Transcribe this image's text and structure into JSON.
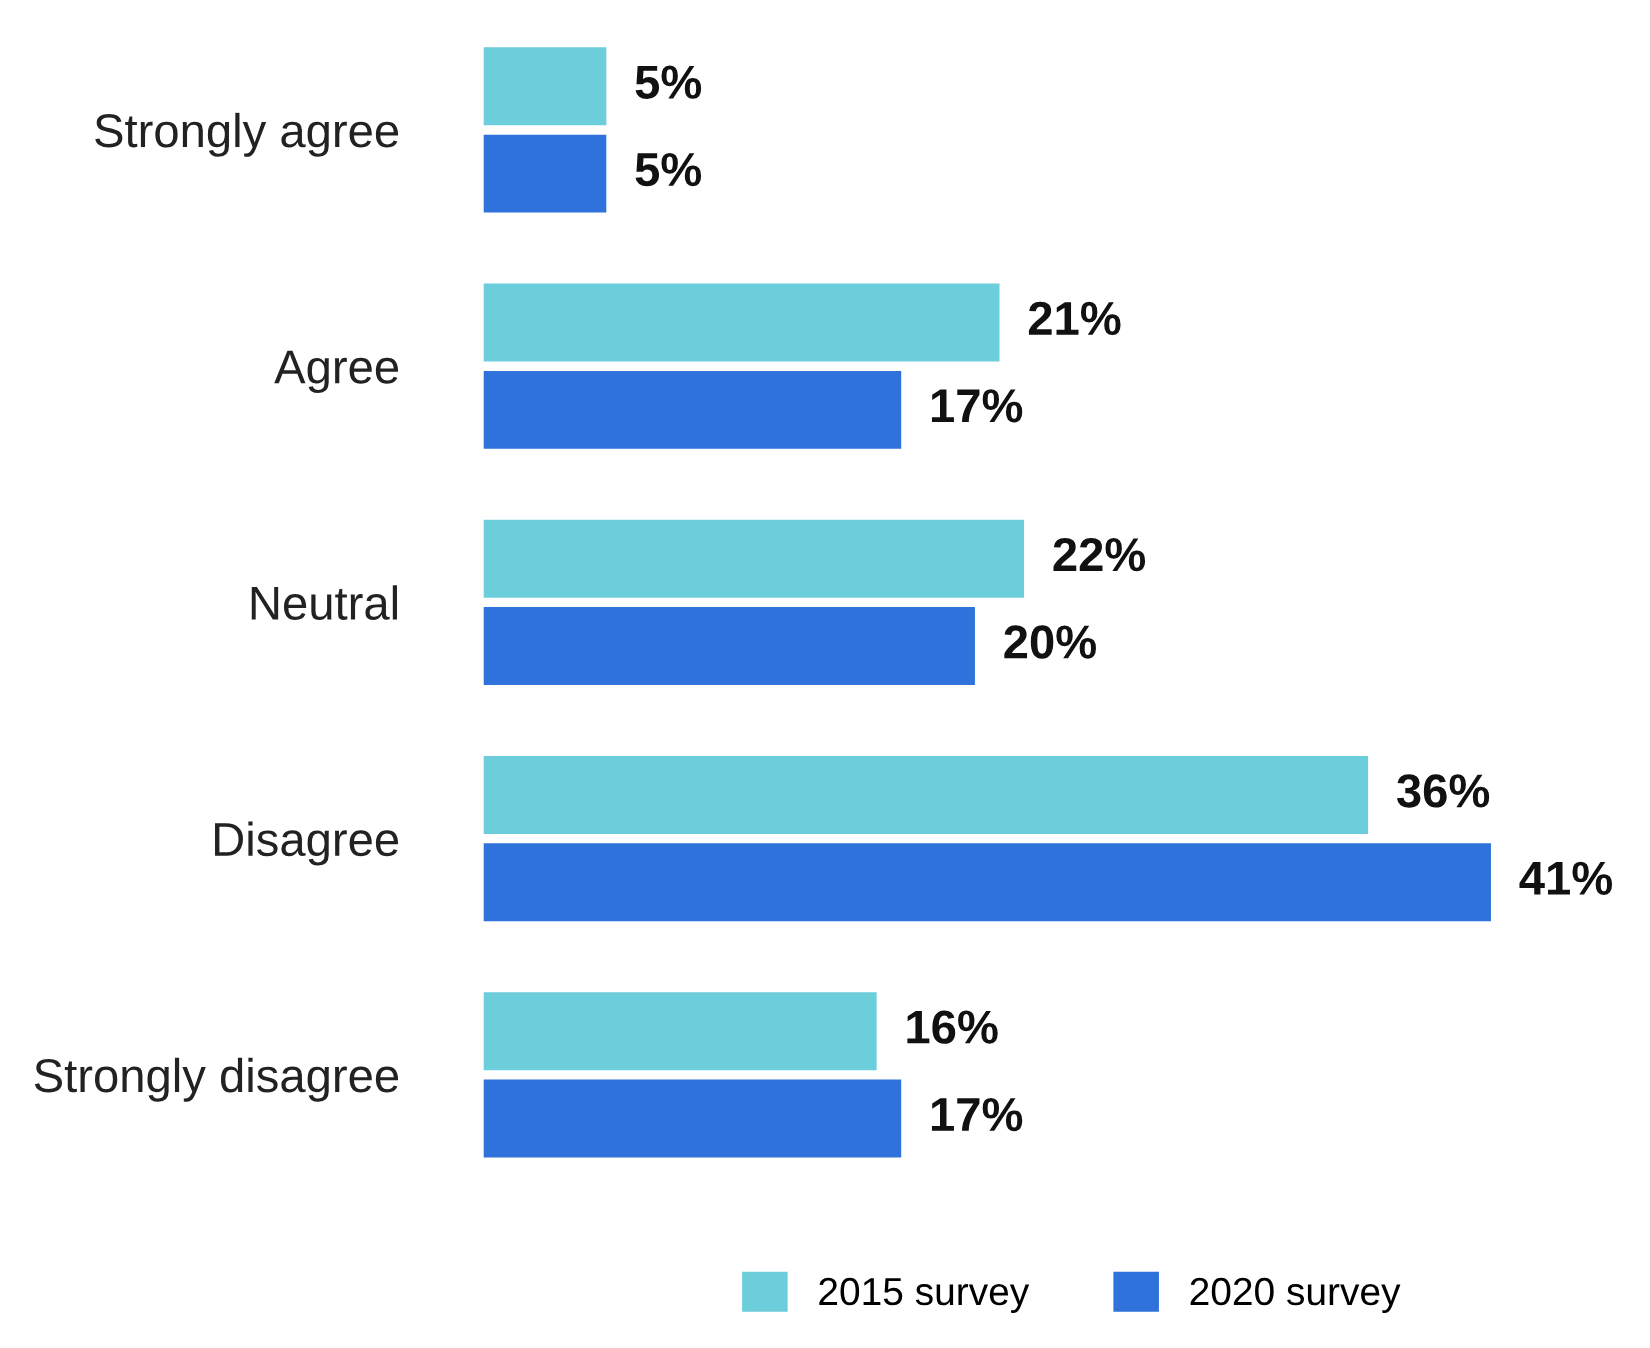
{
  "chart_data": {
    "type": "bar",
    "orientation": "horizontal",
    "categories": [
      "Strongly agree",
      "Agree",
      "Neutral",
      "Disagree",
      "Strongly disagree"
    ],
    "series": [
      {
        "name": "2015 survey",
        "color": "#6ccddb",
        "values": [
          5,
          21,
          22,
          36,
          16
        ],
        "value_labels": [
          "5%",
          "21%",
          "22%",
          "36%",
          "16%"
        ]
      },
      {
        "name": "2020 survey",
        "color": "#2f72db",
        "values": [
          5,
          17,
          20,
          41,
          17
        ],
        "value_labels": [
          "5%",
          "17%",
          "20%",
          "41%",
          "17%"
        ]
      }
    ],
    "legend": "bottom",
    "grid": false
  }
}
